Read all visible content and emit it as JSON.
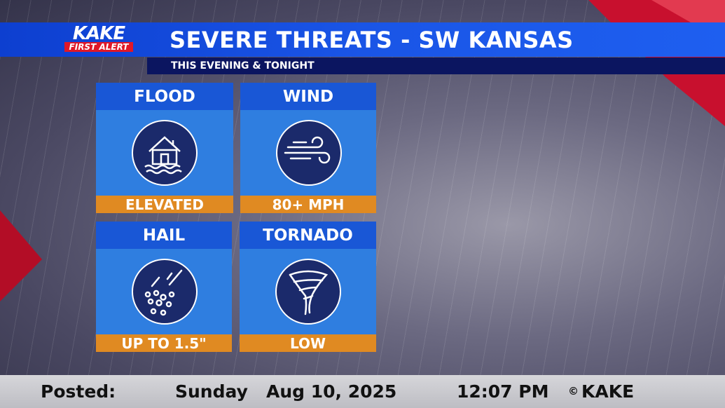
{
  "logo": {
    "name": "KAKE",
    "tag": "FIRST ALERT"
  },
  "header": {
    "title": "SEVERE THREATS - SW KANSAS",
    "subtitle": "THIS EVENING & TONIGHT"
  },
  "threats": [
    {
      "name": "FLOOD",
      "level": "ELEVATED"
    },
    {
      "name": "WIND",
      "level": "80+ MPH"
    },
    {
      "name": "HAIL",
      "level": "UP TO 1.5\""
    },
    {
      "name": "TORNADO",
      "level": "LOW"
    }
  ],
  "footer": {
    "label": "Posted:",
    "day": "Sunday",
    "date": "Aug 10, 2025",
    "time": "12:07 PM",
    "copyright_symbol": "©",
    "copyright_owner": "KAKE"
  }
}
